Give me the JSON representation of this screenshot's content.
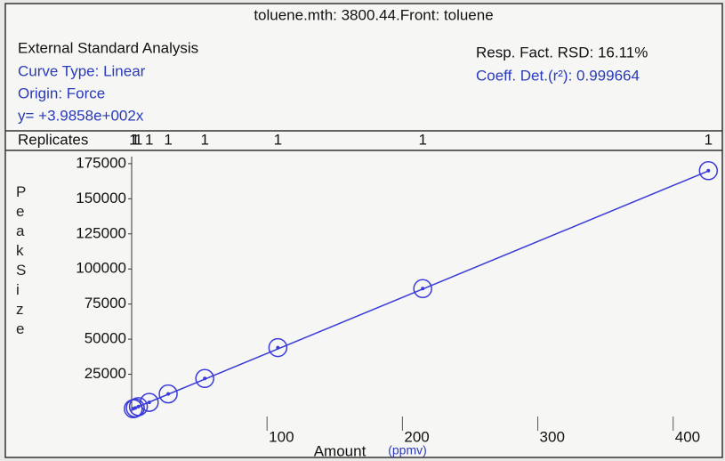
{
  "chart_data": {
    "type": "scatter",
    "title": "toluene.mth: 3800.44.Front: toluene",
    "method": "External Standard Analysis",
    "curve_type": "Curve Type: Linear",
    "origin": "Origin: Force",
    "equation": "y=  +3.9858e+002x",
    "rsd": "Resp. Fact. RSD: 16.11%",
    "coeff": "Coeff. Det.(r²): 0.999664",
    "replicates_label": "Replicates",
    "x_label": "Amount",
    "x_unit": "(ppmv)",
    "y_label": "Peak Size",
    "color": "#3a3ad8",
    "fit_slope": 398.58,
    "x": [
      1.2,
      2.7,
      5,
      13,
      27,
      54,
      108,
      215,
      426
    ],
    "values": [
      500,
      1000,
      2000,
      5000,
      11000,
      22000,
      44000,
      86000,
      170000
    ],
    "replicates": [
      "1",
      "1",
      "1",
      "1",
      "1",
      "1",
      "1",
      "1",
      "1"
    ],
    "xlim": [
      0,
      435
    ],
    "ylim": [
      0,
      180000
    ],
    "xticks": [
      100,
      200,
      300,
      400
    ],
    "yticks": [
      25000,
      50000,
      75000,
      100000,
      125000,
      150000,
      175000
    ]
  }
}
